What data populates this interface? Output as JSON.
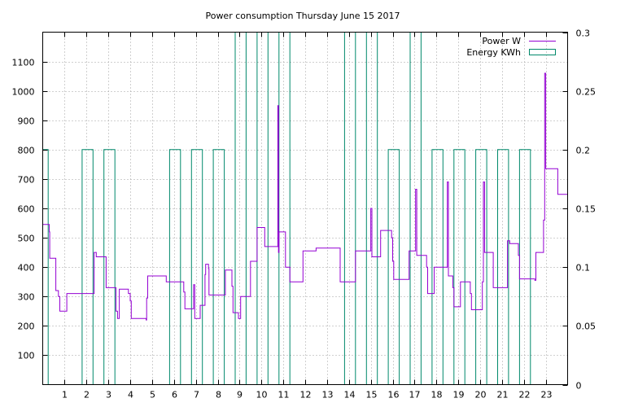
{
  "chart_data": {
    "type": "line",
    "title": "Power consumption Thursday June 15 2017",
    "x_ticks": [
      "1",
      "2",
      "3",
      "4",
      "5",
      "6",
      "7",
      "8",
      "9",
      "10",
      "11",
      "12",
      "13",
      "14",
      "15",
      "16",
      "17",
      "18",
      "19",
      "20",
      "21",
      "22",
      "23"
    ],
    "xlim": [
      0,
      24
    ],
    "y_ticks": [
      100,
      200,
      300,
      400,
      500,
      600,
      700,
      800,
      900,
      1000,
      1100
    ],
    "ylim": [
      0,
      1200
    ],
    "y2_ticks": [
      0,
      0.05,
      0.1,
      0.15,
      0.2,
      0.25,
      0.3
    ],
    "y2_tick_labels": [
      "0",
      "0.05",
      "0.1",
      "0.15",
      "0.2",
      "0.25",
      "0.3"
    ],
    "y2lim": [
      0,
      0.3
    ],
    "grid": true,
    "legend_position": "top-right",
    "series": [
      {
        "name": "Power W",
        "axis": "left",
        "color": "#9400d3",
        "step": true,
        "points": [
          [
            0.0,
            545
          ],
          [
            0.25,
            545
          ],
          [
            0.3,
            520
          ],
          [
            0.32,
            430
          ],
          [
            0.55,
            430
          ],
          [
            0.6,
            320
          ],
          [
            0.72,
            300
          ],
          [
            0.78,
            250
          ],
          [
            1.05,
            250
          ],
          [
            1.1,
            310
          ],
          [
            2.3,
            310
          ],
          [
            2.35,
            450
          ],
          [
            2.45,
            435
          ],
          [
            2.85,
            435
          ],
          [
            2.9,
            330
          ],
          [
            3.3,
            330
          ],
          [
            3.35,
            250
          ],
          [
            3.42,
            225
          ],
          [
            3.5,
            325
          ],
          [
            3.9,
            325
          ],
          [
            3.92,
            310
          ],
          [
            4.0,
            285
          ],
          [
            4.05,
            225
          ],
          [
            4.7,
            225
          ],
          [
            4.73,
            220
          ],
          [
            4.75,
            295
          ],
          [
            4.8,
            370
          ],
          [
            5.6,
            370
          ],
          [
            5.65,
            350
          ],
          [
            6.4,
            350
          ],
          [
            6.45,
            315
          ],
          [
            6.5,
            258
          ],
          [
            6.88,
            258
          ],
          [
            6.9,
            340
          ],
          [
            6.95,
            225
          ],
          [
            7.15,
            225
          ],
          [
            7.2,
            270
          ],
          [
            7.4,
            270
          ],
          [
            7.42,
            375
          ],
          [
            7.45,
            410
          ],
          [
            7.55,
            410
          ],
          [
            7.58,
            395
          ],
          [
            7.6,
            305
          ],
          [
            8.3,
            305
          ],
          [
            8.35,
            390
          ],
          [
            8.6,
            390
          ],
          [
            8.65,
            335
          ],
          [
            8.7,
            245
          ],
          [
            8.9,
            245
          ],
          [
            8.95,
            225
          ],
          [
            9.05,
            300
          ],
          [
            9.45,
            300
          ],
          [
            9.5,
            420
          ],
          [
            9.75,
            420
          ],
          [
            9.8,
            535
          ],
          [
            10.1,
            535
          ],
          [
            10.15,
            470
          ],
          [
            10.7,
            470
          ],
          [
            10.75,
            950
          ],
          [
            10.78,
            450
          ],
          [
            10.8,
            520
          ],
          [
            11.05,
            520
          ],
          [
            11.1,
            400
          ],
          [
            11.25,
            400
          ],
          [
            11.3,
            350
          ],
          [
            11.85,
            350
          ],
          [
            11.9,
            455
          ],
          [
            12.45,
            455
          ],
          [
            12.5,
            465
          ],
          [
            13.55,
            465
          ],
          [
            13.6,
            350
          ],
          [
            14.25,
            350
          ],
          [
            14.3,
            455
          ],
          [
            14.95,
            455
          ],
          [
            15.0,
            600
          ],
          [
            15.05,
            435
          ],
          [
            15.4,
            435
          ],
          [
            15.45,
            525
          ],
          [
            15.9,
            525
          ],
          [
            15.95,
            500
          ],
          [
            16.0,
            420
          ],
          [
            16.05,
            358
          ],
          [
            16.7,
            358
          ],
          [
            16.75,
            455
          ],
          [
            17.0,
            455
          ],
          [
            17.05,
            665
          ],
          [
            17.1,
            440
          ],
          [
            17.5,
            440
          ],
          [
            17.55,
            400
          ],
          [
            17.6,
            310
          ],
          [
            17.85,
            310
          ],
          [
            17.9,
            400
          ],
          [
            18.45,
            400
          ],
          [
            18.5,
            690
          ],
          [
            18.55,
            370
          ],
          [
            18.7,
            370
          ],
          [
            18.75,
            330
          ],
          [
            18.8,
            265
          ],
          [
            19.05,
            265
          ],
          [
            19.1,
            350
          ],
          [
            19.5,
            350
          ],
          [
            19.55,
            310
          ],
          [
            19.6,
            255
          ],
          [
            20.05,
            255
          ],
          [
            20.1,
            350
          ],
          [
            20.15,
            690
          ],
          [
            20.2,
            450
          ],
          [
            20.55,
            450
          ],
          [
            20.6,
            330
          ],
          [
            21.2,
            330
          ],
          [
            21.25,
            490
          ],
          [
            21.35,
            480
          ],
          [
            21.7,
            480
          ],
          [
            21.75,
            440
          ],
          [
            21.8,
            360
          ],
          [
            22.45,
            360
          ],
          [
            22.5,
            355
          ],
          [
            22.55,
            450
          ],
          [
            22.85,
            450
          ],
          [
            22.9,
            560
          ],
          [
            22.95,
            1060
          ],
          [
            23.0,
            735
          ],
          [
            23.5,
            735
          ],
          [
            23.55,
            648
          ],
          [
            24.0,
            648
          ]
        ]
      },
      {
        "name": "Energy KWh",
        "axis": "right",
        "color": "#00896b",
        "step": true,
        "points": [
          [
            0.0,
            0.2
          ],
          [
            0.25,
            0.2
          ],
          [
            0.25,
            0
          ],
          [
            1.8,
            0
          ],
          [
            1.8,
            0.2
          ],
          [
            2.3,
            0.2
          ],
          [
            2.3,
            0
          ],
          [
            2.8,
            0
          ],
          [
            2.8,
            0.2
          ],
          [
            3.3,
            0.2
          ],
          [
            3.3,
            0
          ],
          [
            5.8,
            0
          ],
          [
            5.8,
            0.2
          ],
          [
            6.3,
            0.2
          ],
          [
            6.3,
            0
          ],
          [
            6.8,
            0
          ],
          [
            6.8,
            0.2
          ],
          [
            7.3,
            0.2
          ],
          [
            7.3,
            0
          ],
          [
            7.8,
            0
          ],
          [
            7.8,
            0.2
          ],
          [
            8.3,
            0.2
          ],
          [
            8.3,
            0
          ],
          [
            8.8,
            0
          ],
          [
            8.8,
            0.3
          ],
          [
            9.3,
            0.3
          ],
          [
            9.3,
            0
          ],
          [
            9.8,
            0
          ],
          [
            9.8,
            0.3
          ],
          [
            10.3,
            0.3
          ],
          [
            10.3,
            0
          ],
          [
            10.8,
            0
          ],
          [
            10.8,
            0.3
          ],
          [
            11.3,
            0.3
          ],
          [
            11.3,
            0
          ],
          [
            13.8,
            0
          ],
          [
            13.8,
            0.3
          ],
          [
            14.3,
            0.3
          ],
          [
            14.3,
            0
          ],
          [
            14.8,
            0
          ],
          [
            14.8,
            0.3
          ],
          [
            15.3,
            0.3
          ],
          [
            15.3,
            0
          ],
          [
            15.8,
            0
          ],
          [
            15.8,
            0.2
          ],
          [
            16.3,
            0.2
          ],
          [
            16.3,
            0
          ],
          [
            16.8,
            0
          ],
          [
            16.8,
            0.3
          ],
          [
            17.3,
            0.3
          ],
          [
            17.3,
            0
          ],
          [
            17.8,
            0
          ],
          [
            17.8,
            0.2
          ],
          [
            18.3,
            0.2
          ],
          [
            18.3,
            0
          ],
          [
            18.8,
            0
          ],
          [
            18.8,
            0.2
          ],
          [
            19.3,
            0.2
          ],
          [
            19.3,
            0
          ],
          [
            19.8,
            0
          ],
          [
            19.8,
            0.2
          ],
          [
            20.3,
            0.2
          ],
          [
            20.3,
            0
          ],
          [
            20.8,
            0
          ],
          [
            20.8,
            0.2
          ],
          [
            21.3,
            0.2
          ],
          [
            21.3,
            0
          ],
          [
            21.8,
            0
          ],
          [
            21.8,
            0.2
          ],
          [
            22.3,
            0.2
          ],
          [
            22.3,
            0
          ]
        ]
      }
    ]
  }
}
